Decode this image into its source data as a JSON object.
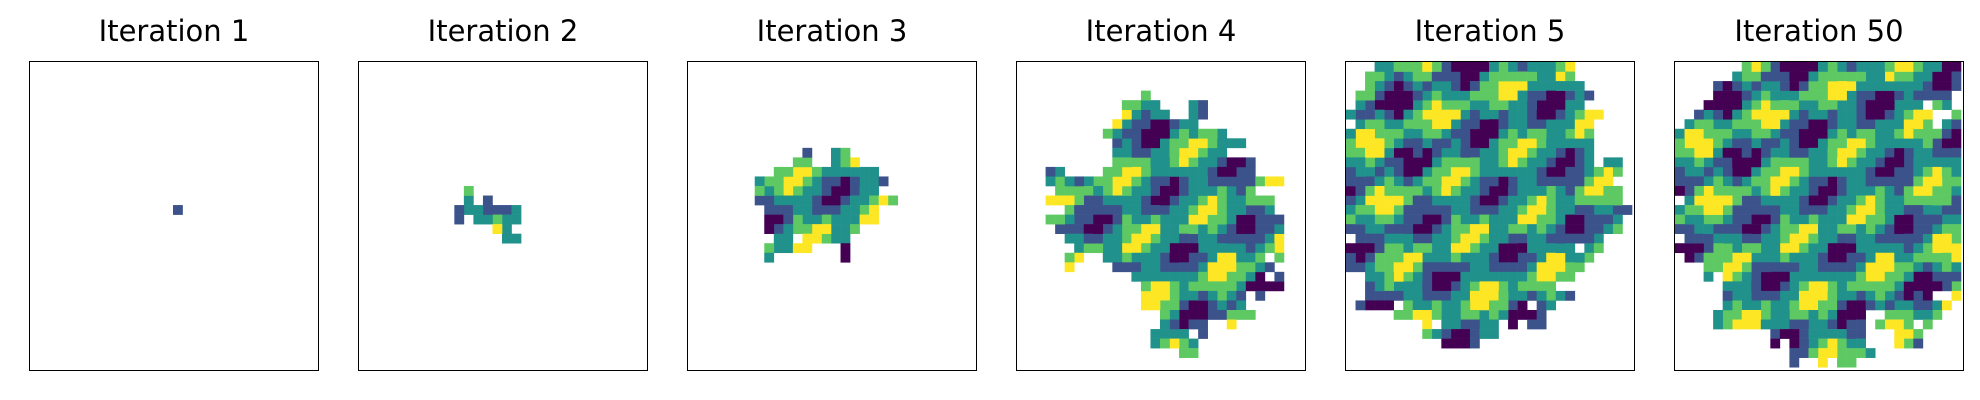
{
  "colormap": [
    "#440154",
    "#3b528b",
    "#21918c",
    "#5ec962",
    "#fde725"
  ],
  "chart_data": [
    {
      "type": "heatmap",
      "title": "Iteration 1",
      "grid_rows": 32,
      "grid_cols": 30,
      "start_cell": [
        15,
        15
      ],
      "values": []
    },
    {
      "type": "heatmap",
      "title": "Iteration 2",
      "grid_rows": 32,
      "grid_cols": 30,
      "start_cell": [
        15,
        15
      ],
      "values": []
    },
    {
      "type": "heatmap",
      "title": "Iteration 3",
      "grid_rows": 32,
      "grid_cols": 30,
      "start_cell": [
        15,
        15
      ],
      "values": []
    },
    {
      "type": "heatmap",
      "title": "Iteration 4",
      "grid_rows": 32,
      "grid_cols": 30,
      "start_cell": [
        15,
        15
      ],
      "values": []
    },
    {
      "type": "heatmap",
      "title": "Iteration 5",
      "grid_rows": 32,
      "grid_cols": 30,
      "start_cell": [
        15,
        15
      ],
      "values": []
    },
    {
      "type": "heatmap",
      "title": "Iteration 50",
      "grid_rows": 32,
      "grid_cols": 30,
      "start_cell": [
        15,
        15
      ],
      "values": []
    }
  ]
}
